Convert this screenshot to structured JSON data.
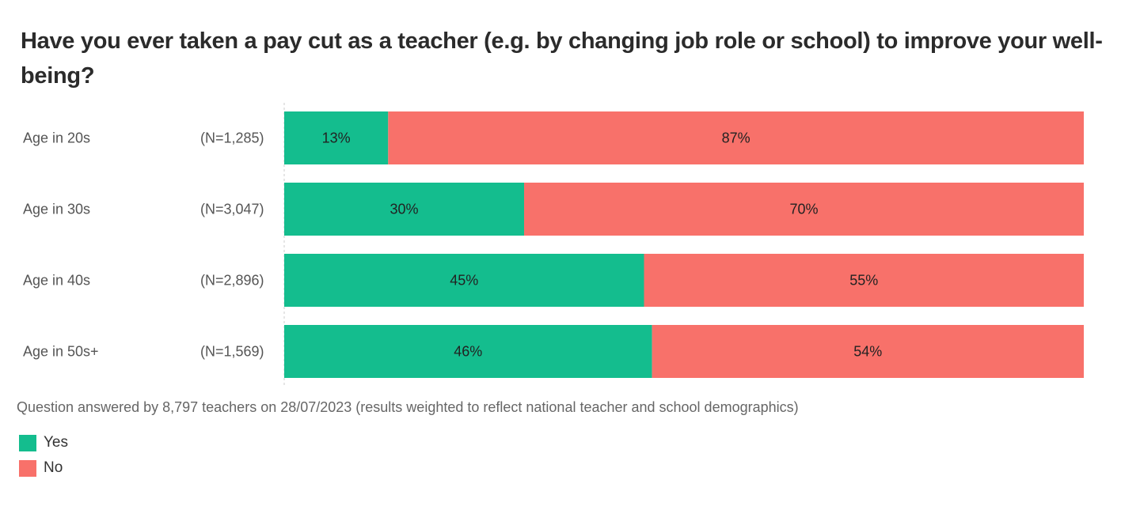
{
  "chart_data": {
    "type": "bar",
    "orientation": "horizontal",
    "stacked": true,
    "title": "Have you ever taken a pay cut as a teacher (e.g. by changing job role or school)  to improve your well-being?",
    "categories": [
      "Age in 20s",
      "Age in 30s",
      "Age in 40s",
      "Age in 50s+"
    ],
    "sample_sizes": [
      "(N=1,285)",
      "(N=3,047)",
      "(N=2,896)",
      "(N=1,569)"
    ],
    "series": [
      {
        "name": "Yes",
        "color": "#14bd8e",
        "values": [
          13,
          30,
          45,
          46
        ]
      },
      {
        "name": "No",
        "color": "#f8716a",
        "values": [
          87,
          70,
          55,
          54
        ]
      }
    ],
    "xlim": [
      0,
      100
    ],
    "value_suffix": "%",
    "legend_position": "bottom-left",
    "footnote": "Question answered by 8,797 teachers on 28/07/2023 (results weighted to reflect national teacher and school demographics)"
  }
}
